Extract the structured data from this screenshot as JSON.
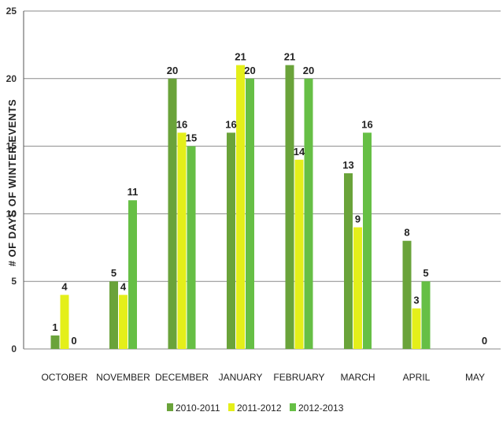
{
  "chart_data": {
    "type": "bar",
    "ylabel": "# OF DAYS OF WINTER EVENTS",
    "xlabel": "",
    "ylim": [
      0,
      25
    ],
    "yticks": [
      0,
      5,
      10,
      15,
      20,
      25
    ],
    "grid": true,
    "legend_position": "bottom",
    "categories": [
      "OCTOBER",
      "NOVEMBER",
      "DECEMBER",
      "JANUARY",
      "FEBRUARY",
      "MARCH",
      "APRIL",
      "MAY"
    ],
    "series": [
      {
        "name": "2010-2011",
        "color": "#6aa33a",
        "values": [
          1,
          5,
          20,
          16,
          21,
          13,
          8,
          null
        ]
      },
      {
        "name": "2011-2012",
        "color": "#e4ef1a",
        "values": [
          4,
          4,
          16,
          21,
          14,
          9,
          3,
          null
        ]
      },
      {
        "name": "2012-2013",
        "color": "#66bf45",
        "values": [
          0,
          11,
          15,
          20,
          20,
          16,
          5,
          0
        ]
      }
    ]
  }
}
